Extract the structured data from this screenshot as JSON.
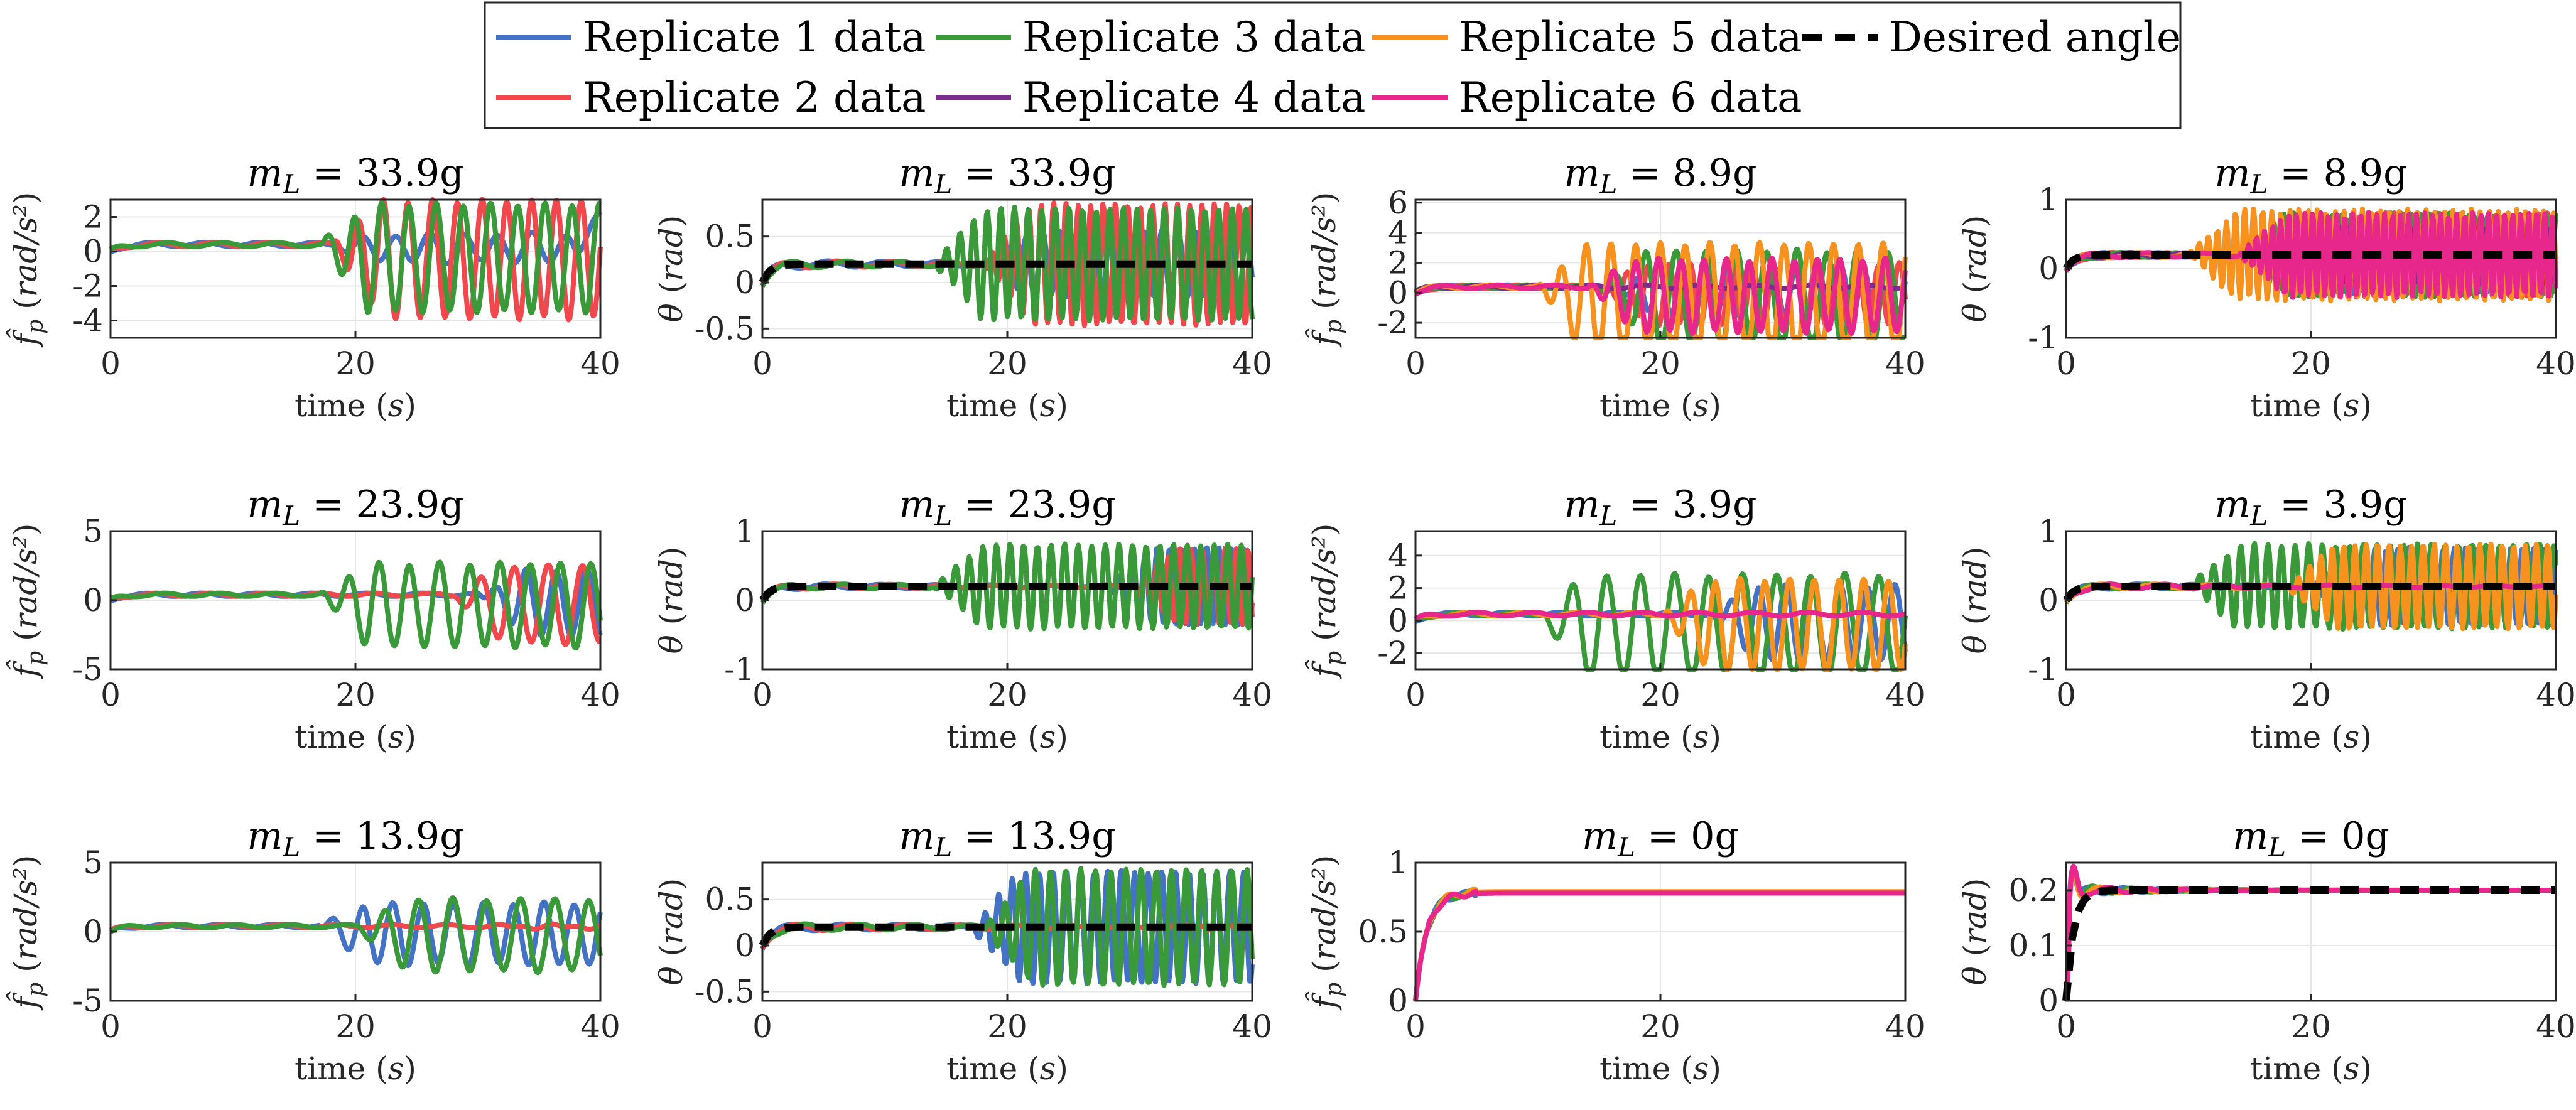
{
  "legend": {
    "placement": "top-center",
    "entries": [
      {
        "label": "Replicate 1 data",
        "color": "#4472c4"
      },
      {
        "label": "Replicate 3 data",
        "color": "#3a9a3a"
      },
      {
        "label": "Replicate 5 data",
        "color": "#f7921e"
      },
      {
        "label": "Desired angle",
        "color": "#000000",
        "dash": true
      },
      {
        "label": "Replicate 2 data",
        "color": "#f0484c"
      },
      {
        "label": "Replicate 4 data",
        "color": "#7b2d8e"
      },
      {
        "label": "Replicate 6 data",
        "color": "#e8278c"
      }
    ]
  },
  "chart_data": [
    {
      "type": "line",
      "title_var": "m",
      "title_sub": "L",
      "title_rest": " = 33.9g",
      "ylabel_kind": "fp",
      "ylabel": "f̂p (rad/s²)",
      "xlabel": "time (s)",
      "xlim": [
        0,
        40
      ],
      "ylim": [
        -5,
        3
      ],
      "xticks": [
        "0",
        "20",
        "40"
      ],
      "yticks": [
        {
          "v": 2,
          "t": "2"
        },
        {
          "v": 0,
          "t": "0"
        },
        {
          "v": -2,
          "t": "-2"
        },
        {
          "v": -4,
          "t": "-4"
        }
      ],
      "grid": true,
      "series": [
        {
          "name": "Replicate 1 data",
          "color": "#4472c4",
          "shape": "fp",
          "gain": 0.8,
          "freq": 0.8,
          "start": 18,
          "seed": 1,
          "end": 2.3
        },
        {
          "name": "Replicate 2 data",
          "color": "#f0484c",
          "shape": "fp",
          "gain": 3.4,
          "freq": 1.1,
          "start": 18,
          "seed": 2
        },
        {
          "name": "Replicate 3 data",
          "color": "#3a9a3a",
          "shape": "fp",
          "gain": 3.1,
          "freq": 1.0,
          "start": 17,
          "seed": 3
        }
      ]
    },
    {
      "type": "line",
      "title_var": "m",
      "title_sub": "L",
      "title_rest": " = 33.9g",
      "ylabel_kind": "theta",
      "ylabel": "θ (rad)",
      "xlabel": "time (s)",
      "xlim": [
        0,
        40
      ],
      "ylim": [
        -0.6,
        0.9
      ],
      "xticks": [
        "0",
        "20",
        "40"
      ],
      "yticks": [
        {
          "v": 0.5,
          "t": "0.5"
        },
        {
          "v": 0,
          "t": "0"
        },
        {
          "v": -0.5,
          "t": "-0.5"
        }
      ],
      "grid": true,
      "desired": 0.2,
      "series": [
        {
          "name": "Replicate 1 data",
          "color": "#4472c4",
          "shape": "theta",
          "gain": 0.35,
          "freq": 0.8,
          "start": 18,
          "seed": 4
        },
        {
          "name": "Replicate 2 data",
          "color": "#f0484c",
          "shape": "theta",
          "gain": 0.65,
          "freq": 1.1,
          "start": 18,
          "seed": 5
        },
        {
          "name": "Replicate 3 data",
          "color": "#3a9a3a",
          "shape": "theta",
          "gain": 0.6,
          "freq": 1.0,
          "start": 14,
          "seed": 6
        }
      ]
    },
    {
      "type": "line",
      "title_var": "m",
      "title_sub": "L",
      "title_rest": " = 8.9g",
      "ylabel_kind": "fp",
      "ylabel": "f̂p (rad/s²)",
      "xlabel": "time (s)",
      "xlim": [
        0,
        40
      ],
      "ylim": [
        -3,
        6.2
      ],
      "xticks": [
        "0",
        "20",
        "40"
      ],
      "yticks": [
        {
          "v": 6,
          "t": "6"
        },
        {
          "v": 4,
          "t": "4"
        },
        {
          "v": 2,
          "t": "2"
        },
        {
          "v": 0,
          "t": "0"
        },
        {
          "v": -2,
          "t": "-2"
        }
      ],
      "grid": true,
      "series": [
        {
          "name": "Replicate 1 data",
          "color": "#4472c4",
          "shape": "fp",
          "gain": 1.6,
          "freq": 1.2,
          "start": 16,
          "seed": 7
        },
        {
          "name": "Replicate 2 data",
          "color": "#f0484c",
          "shape": "fp",
          "gain": 2.0,
          "freq": 1.3,
          "start": 15,
          "seed": 8
        },
        {
          "name": "Replicate 3 data",
          "color": "#3a9a3a",
          "shape": "fp",
          "gain": 3.2,
          "freq": 0.9,
          "start": 15,
          "seed": 9
        },
        {
          "name": "Replicate 4 data",
          "color": "#7b2d8e",
          "shape": "fp",
          "gain": 0.0,
          "freq": 1.0,
          "start": 40,
          "seed": 10
        },
        {
          "name": "Replicate 5 data",
          "color": "#f7921e",
          "shape": "fp",
          "gain": 3.8,
          "freq": 1.1,
          "start": 10,
          "seed": 11
        },
        {
          "name": "Replicate 6 data",
          "color": "#e8278c",
          "shape": "fp",
          "gain": 2.4,
          "freq": 1.2,
          "start": 14,
          "seed": 12
        }
      ]
    },
    {
      "type": "line",
      "title_var": "m",
      "title_sub": "L",
      "title_rest": " = 8.9g",
      "ylabel_kind": "theta",
      "ylabel": "θ (rad)",
      "xlabel": "time (s)",
      "xlim": [
        0,
        40
      ],
      "ylim": [
        -1,
        1
      ],
      "xticks": [
        "0",
        "20",
        "40"
      ],
      "yticks": [
        {
          "v": 1,
          "t": "1"
        },
        {
          "v": 0,
          "t": "0"
        },
        {
          "v": -1,
          "t": "-1"
        }
      ],
      "grid": true,
      "desired": 0.2,
      "series": [
        {
          "name": "Replicate 1 data",
          "color": "#4472c4",
          "shape": "theta",
          "gain": 0.55,
          "freq": 1.5,
          "start": 16,
          "seed": 13
        },
        {
          "name": "Replicate 2 data",
          "color": "#f0484c",
          "shape": "theta",
          "gain": 0.6,
          "freq": 1.6,
          "start": 16,
          "seed": 14
        },
        {
          "name": "Replicate 3 data",
          "color": "#3a9a3a",
          "shape": "theta",
          "gain": 0.6,
          "freq": 1.4,
          "start": 14,
          "seed": 15
        },
        {
          "name": "Replicate 4 data",
          "color": "#7b2d8e",
          "shape": "theta",
          "gain": 0.4,
          "freq": 1.5,
          "start": 18,
          "seed": 16
        },
        {
          "name": "Replicate 5 data",
          "color": "#f7921e",
          "shape": "theta",
          "gain": 0.65,
          "freq": 1.5,
          "start": 10,
          "seed": 17
        },
        {
          "name": "Replicate 6 data",
          "color": "#e8278c",
          "shape": "theta",
          "gain": 0.6,
          "freq": 1.7,
          "start": 14,
          "seed": 18
        }
      ]
    },
    {
      "type": "line",
      "title_var": "m",
      "title_sub": "L",
      "title_rest": " = 23.9g",
      "ylabel_kind": "fp",
      "ylabel": "f̂p (rad/s²)",
      "xlabel": "time (s)",
      "xlim": [
        0,
        40
      ],
      "ylim": [
        -5,
        5
      ],
      "xticks": [
        "0",
        "20",
        "40"
      ],
      "yticks": [
        {
          "v": 5,
          "t": "5"
        },
        {
          "v": 0,
          "t": "0"
        },
        {
          "v": -5,
          "t": "-5"
        }
      ],
      "grid": true,
      "series": [
        {
          "name": "Replicate 1 data",
          "color": "#4472c4",
          "shape": "fp",
          "gain": 2.4,
          "freq": 0.9,
          "start": 30,
          "seed": 19
        },
        {
          "name": "Replicate 2 data",
          "color": "#f0484c",
          "shape": "fp",
          "gain": 2.8,
          "freq": 0.8,
          "start": 28,
          "seed": 20
        },
        {
          "name": "Replicate 3 data",
          "color": "#3a9a3a",
          "shape": "fp",
          "gain": 3.0,
          "freq": 0.9,
          "start": 17,
          "seed": 21
        }
      ]
    },
    {
      "type": "line",
      "title_var": "m",
      "title_sub": "L",
      "title_rest": " = 23.9g",
      "ylabel_kind": "theta",
      "ylabel": "θ (rad)",
      "xlabel": "time (s)",
      "xlim": [
        0,
        40
      ],
      "ylim": [
        -1,
        1
      ],
      "xticks": [
        "0",
        "20",
        "40"
      ],
      "yticks": [
        {
          "v": 1,
          "t": "1"
        },
        {
          "v": 0,
          "t": "0"
        },
        {
          "v": -1,
          "t": "-1"
        }
      ],
      "grid": true,
      "desired": 0.2,
      "series": [
        {
          "name": "Replicate 1 data",
          "color": "#4472c4",
          "shape": "theta",
          "gain": 0.55,
          "freq": 1.1,
          "start": 28,
          "seed": 22
        },
        {
          "name": "Replicate 2 data",
          "color": "#f0484c",
          "shape": "theta",
          "gain": 0.55,
          "freq": 1.2,
          "start": 30,
          "seed": 23
        },
        {
          "name": "Replicate 3 data",
          "color": "#3a9a3a",
          "shape": "theta",
          "gain": 0.6,
          "freq": 1.0,
          "start": 14,
          "seed": 24
        }
      ]
    },
    {
      "type": "line",
      "title_var": "m",
      "title_sub": "L",
      "title_rest": " = 3.9g",
      "ylabel_kind": "fp",
      "ylabel": "f̂p (rad/s²)",
      "xlabel": "time (s)",
      "xlim": [
        0,
        40
      ],
      "ylim": [
        -3,
        5.5
      ],
      "xticks": [
        "0",
        "20",
        "40"
      ],
      "yticks": [
        {
          "v": 4,
          "t": "4"
        },
        {
          "v": 2,
          "t": "2"
        },
        {
          "v": 0,
          "t": "0"
        },
        {
          "v": -2,
          "t": "-2"
        }
      ],
      "grid": true,
      "series": [
        {
          "name": "Replicate 1 data",
          "color": "#4472c4",
          "shape": "fp",
          "gain": 2.3,
          "freq": 1.0,
          "start": 24,
          "seed": 25
        },
        {
          "name": "Replicate 3 data",
          "color": "#3a9a3a",
          "shape": "fp",
          "gain": 3.2,
          "freq": 0.8,
          "start": 10,
          "seed": 26
        },
        {
          "name": "Replicate 5 data",
          "color": "#f7921e",
          "shape": "fp",
          "gain": 2.8,
          "freq": 1.1,
          "start": 20,
          "seed": 27
        },
        {
          "name": "Replicate 6 data",
          "color": "#e8278c",
          "shape": "fp",
          "gain": 0.0,
          "freq": 1.0,
          "start": 40,
          "seed": 28
        }
      ]
    },
    {
      "type": "line",
      "title_var": "m",
      "title_sub": "L",
      "title_rest": " = 3.9g",
      "ylabel_kind": "theta",
      "ylabel": "θ (rad)",
      "xlabel": "time (s)",
      "xlim": [
        0,
        40
      ],
      "ylim": [
        -1,
        1
      ],
      "xticks": [
        "0",
        "20",
        "40"
      ],
      "yticks": [
        {
          "v": 1,
          "t": "1"
        },
        {
          "v": 0,
          "t": "0"
        },
        {
          "v": -1,
          "t": "-1"
        }
      ],
      "grid": true,
      "desired": 0.2,
      "series": [
        {
          "name": "Replicate 1 data",
          "color": "#4472c4",
          "shape": "theta",
          "gain": 0.55,
          "freq": 1.2,
          "start": 20,
          "seed": 29
        },
        {
          "name": "Replicate 3 data",
          "color": "#3a9a3a",
          "shape": "theta",
          "gain": 0.6,
          "freq": 1.0,
          "start": 10,
          "seed": 30
        },
        {
          "name": "Replicate 5 data",
          "color": "#f7921e",
          "shape": "theta",
          "gain": 0.6,
          "freq": 1.2,
          "start": 18,
          "seed": 31
        },
        {
          "name": "Replicate 6 data",
          "color": "#e8278c",
          "shape": "theta",
          "gain": 0.0,
          "freq": 1.0,
          "start": 40,
          "seed": 32
        }
      ]
    },
    {
      "type": "line",
      "title_var": "m",
      "title_sub": "L",
      "title_rest": " = 13.9g",
      "ylabel_kind": "fp",
      "ylabel": "f̂p (rad/s²)",
      "xlabel": "time (s)",
      "xlim": [
        0,
        40
      ],
      "ylim": [
        -5,
        5
      ],
      "xticks": [
        "0",
        "20",
        "40"
      ],
      "yticks": [
        {
          "v": 5,
          "t": "5"
        },
        {
          "v": 0,
          "t": "0"
        },
        {
          "v": -5,
          "t": "-5"
        }
      ],
      "grid": true,
      "series": [
        {
          "name": "Replicate 1 data",
          "color": "#4472c4",
          "shape": "fp",
          "gain": 2.2,
          "freq": 0.9,
          "start": 17,
          "seed": 33
        },
        {
          "name": "Replicate 2 data",
          "color": "#f0484c",
          "shape": "fp",
          "gain": 0.1,
          "freq": 1.0,
          "start": 30,
          "seed": 34
        },
        {
          "name": "Replicate 3 data",
          "color": "#3a9a3a",
          "shape": "fp",
          "gain": 2.6,
          "freq": 0.8,
          "start": 20,
          "seed": 35
        }
      ]
    },
    {
      "type": "line",
      "title_var": "m",
      "title_sub": "L",
      "title_rest": " = 13.9g",
      "ylabel_kind": "theta",
      "ylabel": "θ (rad)",
      "xlabel": "time (s)",
      "xlim": [
        0,
        40
      ],
      "ylim": [
        -0.6,
        0.9
      ],
      "xticks": [
        "0",
        "20",
        "40"
      ],
      "yticks": [
        {
          "v": 0.5,
          "t": "0.5"
        },
        {
          "v": 0,
          "t": "0"
        },
        {
          "v": -0.5,
          "t": "-0.5"
        }
      ],
      "grid": true,
      "desired": 0.2,
      "series": [
        {
          "name": "Replicate 1 data",
          "color": "#4472c4",
          "shape": "theta",
          "gain": 0.6,
          "freq": 1.0,
          "start": 17,
          "seed": 36
        },
        {
          "name": "Replicate 2 data",
          "color": "#f0484c",
          "shape": "theta",
          "gain": 0.02,
          "freq": 1.0,
          "start": 30,
          "seed": 37
        },
        {
          "name": "Replicate 3 data",
          "color": "#3a9a3a",
          "shape": "theta",
          "gain": 0.62,
          "freq": 0.9,
          "start": 18,
          "seed": 38
        }
      ]
    },
    {
      "type": "line",
      "title_var": "m",
      "title_sub": "L",
      "title_rest": " = 0g",
      "ylabel_kind": "fp",
      "ylabel": "f̂p (rad/s²)",
      "xlabel": "time (s)",
      "xlim": [
        0,
        40
      ],
      "ylim": [
        0,
        1
      ],
      "xticks": [
        "0",
        "20",
        "40"
      ],
      "yticks": [
        {
          "v": 1,
          "t": "1"
        },
        {
          "v": 0.5,
          "t": "0.5"
        },
        {
          "v": 0,
          "t": "0"
        }
      ],
      "grid": true,
      "series": [
        {
          "name": "Replicate 1 data",
          "color": "#4472c4",
          "shape": "step",
          "level": 0.78,
          "seed": 39
        },
        {
          "name": "Replicate 3 data",
          "color": "#3a9a3a",
          "shape": "step",
          "level": 0.78,
          "seed": 40
        },
        {
          "name": "Replicate 5 data",
          "color": "#f7921e",
          "shape": "step",
          "level": 0.79,
          "seed": 41
        },
        {
          "name": "Replicate 6 data",
          "color": "#e8278c",
          "shape": "step",
          "level": 0.78,
          "seed": 42
        }
      ]
    },
    {
      "type": "line",
      "title_var": "m",
      "title_sub": "L",
      "title_rest": " = 0g",
      "ylabel_kind": "theta",
      "ylabel": "θ (rad)",
      "xlabel": "time (s)",
      "xlim": [
        0,
        40
      ],
      "ylim": [
        0,
        0.25
      ],
      "xticks": [
        "0",
        "20",
        "40"
      ],
      "yticks": [
        {
          "v": 0.2,
          "t": "0.2"
        },
        {
          "v": 0.1,
          "t": "0.1"
        },
        {
          "v": 0,
          "t": "0"
        }
      ],
      "grid": true,
      "desired": 0.2,
      "series": [
        {
          "name": "Replicate 1 data",
          "color": "#4472c4",
          "shape": "overshoot",
          "level": 0.2,
          "seed": 43
        },
        {
          "name": "Replicate 3 data",
          "color": "#3a9a3a",
          "shape": "overshoot",
          "level": 0.2,
          "seed": 44
        },
        {
          "name": "Replicate 5 data",
          "color": "#f7921e",
          "shape": "overshoot",
          "level": 0.2,
          "seed": 45
        },
        {
          "name": "Replicate 6 data",
          "color": "#e8278c",
          "shape": "overshoot",
          "level": 0.2,
          "seed": 46
        }
      ]
    }
  ]
}
